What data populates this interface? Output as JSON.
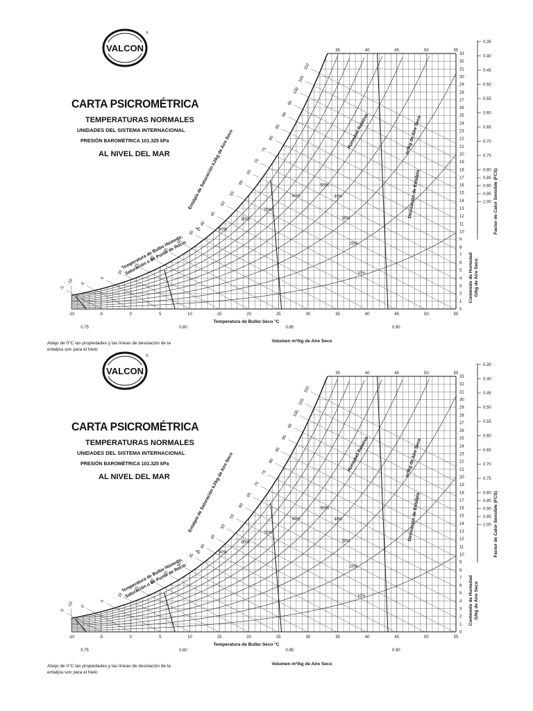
{
  "sheets": [
    {
      "id": "top"
    },
    {
      "id": "bottom"
    }
  ],
  "header": {
    "logo_text": "VALCON",
    "logo_mark": "®",
    "title": "CARTA PSICROMÉTRICA",
    "subtitle": "TEMPERATURAS NORMALES",
    "units": "UNIDADES DEL SISTEMA INTERNACIONAL",
    "pressure": "PRESIÓN BAROMÉTRICA   101.325 kPa",
    "altitude": "AL NIVEL DEL MAR"
  },
  "note": "Abajo de 0°C las propiedades y las líneas de desviación de la entalpía son para el hielo",
  "labels": {
    "dry_bulb_axis": "Temperatura de Bulbo Seco   °C",
    "volume_axis": "Volumen    m³/kg de Aire Seco",
    "humidity_axis_1": "Contenido de Humedad",
    "humidity_axis_2": "G/kg de Aire Seco",
    "shf_axis": "Factor de Calor Sensible (FCS)",
    "enthalpy_axis": "Entalpía de Saturación   kJ/kg de Aire Seco",
    "wet_bulb_1": "Temperatura de Bulbo Húmedo,",
    "wet_bulb_2": "Saturación o de Punto de Rocío",
    "wet_bulb_unit": "°C",
    "rh_label": "Humedad Relativa",
    "sv_label": "m³/kg de Aire Seco",
    "dev_label": "Desviación de Entalpía"
  },
  "chart_data": {
    "type": "psychrometric",
    "dry_bulb_ticks": [
      "-10",
      "-5",
      "0",
      "5",
      "10",
      "15",
      "20",
      "25",
      "30",
      "35",
      "40",
      "45",
      "50",
      "55"
    ],
    "dry_bulb_range": [
      -10,
      55
    ],
    "humidity_ticks": [
      "0",
      "1",
      "2",
      "3",
      "4",
      "5",
      "6",
      "7",
      "8",
      "9",
      "10",
      "11",
      "12",
      "13",
      "14",
      "15",
      "16",
      "17",
      "18",
      "19",
      "20",
      "21",
      "22",
      "23",
      "24",
      "25",
      "26",
      "27",
      "28",
      "29",
      "30",
      "31",
      "32",
      "33"
    ],
    "humidity_range": [
      0,
      33
    ],
    "top_ticks": [
      "35",
      "40",
      "45",
      "50",
      "55"
    ],
    "enthalpy_ticks": [
      "-10",
      "-5",
      "0",
      "5",
      "10",
      "15",
      "20",
      "25",
      "30",
      "35",
      "40",
      "45",
      "50",
      "55",
      "60",
      "65",
      "70",
      "75",
      "80",
      "85",
      "90",
      "95",
      "100",
      "105",
      "110"
    ],
    "shf_ticks": [
      "0.35",
      "0.40",
      "0.45",
      "0.50",
      "0.55",
      "0.60",
      "0.65",
      "0.70",
      "0.75",
      "0.80",
      "0.85",
      "0.90",
      "0.95",
      "1.00"
    ],
    "volume_ticks": [
      "0.75",
      "0.80",
      "0.85",
      "0.90"
    ],
    "rh_curves": [
      10,
      20,
      30,
      40,
      50,
      60,
      70,
      80,
      90
    ],
    "rh_labels": [
      "10%",
      "20%",
      "30%",
      "40%",
      "50%",
      "60%",
      "70%",
      "80%",
      "90%"
    ]
  }
}
